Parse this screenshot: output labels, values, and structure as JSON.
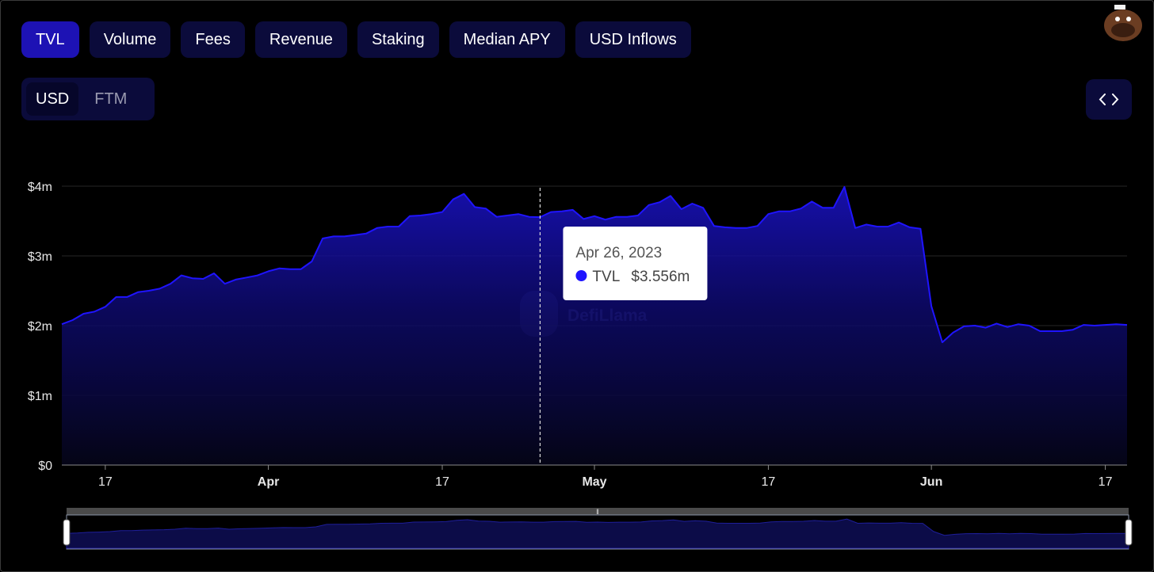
{
  "tabs": {
    "items": [
      "TVL",
      "Volume",
      "Fees",
      "Revenue",
      "Staking",
      "Median APY",
      "USD Inflows"
    ],
    "active": "TVL"
  },
  "units": {
    "items": [
      "USD",
      "FTM"
    ],
    "active": "USD"
  },
  "watermark": "DefiLlama",
  "chart_data": {
    "type": "area",
    "x": [
      "2023-03-13",
      "2023-03-14",
      "2023-03-15",
      "2023-03-16",
      "2023-03-17",
      "2023-03-18",
      "2023-03-19",
      "2023-03-20",
      "2023-03-21",
      "2023-03-22",
      "2023-03-23",
      "2023-03-24",
      "2023-03-25",
      "2023-03-26",
      "2023-03-27",
      "2023-03-28",
      "2023-03-29",
      "2023-03-30",
      "2023-03-31",
      "2023-04-01",
      "2023-04-02",
      "2023-04-03",
      "2023-04-04",
      "2023-04-05",
      "2023-04-06",
      "2023-04-07",
      "2023-04-08",
      "2023-04-09",
      "2023-04-10",
      "2023-04-11",
      "2023-04-12",
      "2023-04-13",
      "2023-04-14",
      "2023-04-15",
      "2023-04-16",
      "2023-04-17",
      "2023-04-18",
      "2023-04-19",
      "2023-04-20",
      "2023-04-21",
      "2023-04-22",
      "2023-04-23",
      "2023-04-24",
      "2023-04-25",
      "2023-04-26",
      "2023-04-27",
      "2023-04-28",
      "2023-04-29",
      "2023-04-30",
      "2023-05-01",
      "2023-05-02",
      "2023-05-03",
      "2023-05-04",
      "2023-05-05",
      "2023-05-06",
      "2023-05-07",
      "2023-05-08",
      "2023-05-09",
      "2023-05-10",
      "2023-05-11",
      "2023-05-12",
      "2023-05-13",
      "2023-05-14",
      "2023-05-15",
      "2023-05-16",
      "2023-05-17",
      "2023-05-18",
      "2023-05-19",
      "2023-05-20",
      "2023-05-21",
      "2023-05-22",
      "2023-05-23",
      "2023-05-24",
      "2023-05-25",
      "2023-05-26",
      "2023-05-27",
      "2023-05-28",
      "2023-05-29",
      "2023-05-30",
      "2023-05-31",
      "2023-06-01",
      "2023-06-02",
      "2023-06-03",
      "2023-06-04",
      "2023-06-05",
      "2023-06-06",
      "2023-06-07",
      "2023-06-08",
      "2023-06-09",
      "2023-06-10",
      "2023-06-11",
      "2023-06-12",
      "2023-06-13",
      "2023-06-14",
      "2023-06-15",
      "2023-06-16",
      "2023-06-17",
      "2023-06-18",
      "2023-06-19"
    ],
    "series": [
      {
        "name": "TVL",
        "color": "#1f14ff",
        "values": [
          2.02,
          2.08,
          2.17,
          2.2,
          2.27,
          2.41,
          2.41,
          2.48,
          2.5,
          2.53,
          2.6,
          2.72,
          2.68,
          2.67,
          2.75,
          2.6,
          2.66,
          2.69,
          2.72,
          2.78,
          2.82,
          2.81,
          2.81,
          2.92,
          3.25,
          3.28,
          3.28,
          3.3,
          3.32,
          3.4,
          3.42,
          3.42,
          3.57,
          3.58,
          3.6,
          3.63,
          3.81,
          3.89,
          3.7,
          3.68,
          3.56,
          3.58,
          3.6,
          3.56,
          3.556,
          3.63,
          3.64,
          3.66,
          3.53,
          3.57,
          3.52,
          3.56,
          3.56,
          3.58,
          3.73,
          3.77,
          3.86,
          3.67,
          3.75,
          3.69,
          3.43,
          3.41,
          3.4,
          3.4,
          3.43,
          3.6,
          3.64,
          3.64,
          3.68,
          3.78,
          3.69,
          3.69,
          3.99,
          3.4,
          3.45,
          3.42,
          3.42,
          3.48,
          3.41,
          3.39,
          2.28,
          1.76,
          1.9,
          1.99,
          2.0,
          1.97,
          2.03,
          1.98,
          2.02,
          2.0,
          1.92,
          1.92,
          1.92,
          1.94,
          2.01,
          2.0,
          2.01,
          2.02,
          2.01
        ]
      }
    ],
    "xlim": [
      "2023-03-13",
      "2023-06-19"
    ],
    "xticks": [
      {
        "value": "2023-03-17",
        "label": "17"
      },
      {
        "value": "2023-04-01",
        "label": "Apr"
      },
      {
        "value": "2023-04-17",
        "label": "17"
      },
      {
        "value": "2023-05-01",
        "label": "May"
      },
      {
        "value": "2023-05-17",
        "label": "17"
      },
      {
        "value": "2023-06-01",
        "label": "Jun"
      },
      {
        "value": "2023-06-17",
        "label": "17"
      }
    ],
    "ylim": [
      0,
      4
    ],
    "yticks": [
      {
        "value": 0,
        "label": "$0"
      },
      {
        "value": 1,
        "label": "$1m"
      },
      {
        "value": 2,
        "label": "$2m"
      },
      {
        "value": 3,
        "label": "$3m"
      },
      {
        "value": 4,
        "label": "$4m"
      }
    ],
    "grid": true,
    "tooltip": {
      "x": "2023-04-26",
      "title": "Apr 26, 2023",
      "value_label": "$3.556m"
    }
  }
}
